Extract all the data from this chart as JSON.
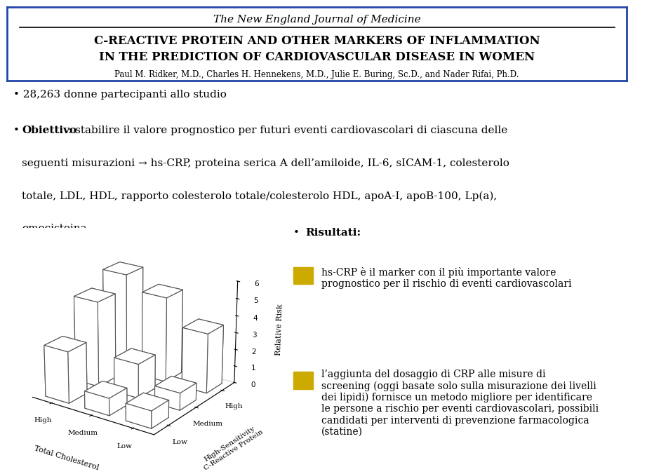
{
  "bg_color": "#ffffff",
  "border_color": "#2244aa",
  "journal_title": "The New England Journal of Medicine",
  "article_title_line1": "C-REACTIVE PROTEIN AND OTHER MARKERS OF INFLAMMATION",
  "article_title_line2": "IN THE PREDICTION OF CARDIOVASCULAR DISEASE IN WOMEN",
  "authors": "Paul M. Ridker, M.D., Charles H. Hennekens, M.D., Julie E. Buring, Sc.D., and Nader Rifai, Ph.D.",
  "bullet1": "28,263 donne partecipanti allo studio",
  "bullet2_bold": "Obiettivo",
  "bullet2_rest": ": stabilire il valore prognostico per futuri eventi cardiovascolari di ciascuna delle\nseguenti misurazioni → hs-CRP, proteina serica A dell’amiloide, IL-6, sICAM-1, colesterolo\ntotale, LDL, HDL, rapporto colesterolo totale/colesterolo HDL, apoA-I, apoB-100, Lp(a),\nomocisteina",
  "bullet3_bold": "Risultati",
  "result1_square_color": "#ccaa00",
  "result1_text": "hs-CRP è il marker con il più importante valore\nprognostico per il rischio di eventi cardiovascolari",
  "result2_square_color": "#ccaa00",
  "result2_text": "l’aggiunta del dosaggio di CRP alle misure di\nscreening (oggi basate solo sulla misurazione dei livelli\ndei lipidi) fornisce un metodo migliore per identificare\nle persone a rischio per eventi cardiovascolari, possibili\ncandidati per interventi di prevenzione farmacologica\n(statine)",
  "bar_data": [
    [
      3.0,
      5.0,
      5.8
    ],
    [
      1.0,
      2.0,
      5.0
    ],
    [
      1.0,
      1.0,
      3.5
    ]
  ],
  "xlabel": "Total Cholesterol",
  "x_ticks": [
    "High",
    "Medium",
    "Low"
  ],
  "ylabel": "High-Sensitivity\nC-Reactive Protein",
  "y_ticks": [
    "Low",
    "Medium",
    "High"
  ],
  "zlabel": "Relative Risk",
  "z_ticks": [
    0,
    1,
    2,
    3,
    4,
    5,
    6
  ]
}
